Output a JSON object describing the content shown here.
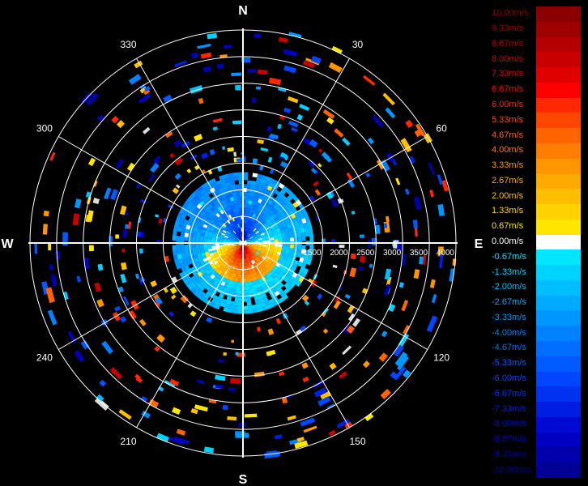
{
  "chart_data": {
    "type": "heatmap",
    "subtype": "polar-doppler-velocity-ppi",
    "compass": {
      "north": "N",
      "east": "E",
      "south": "S",
      "west": "W"
    },
    "azimuth_labels": [
      "30",
      "60",
      "120",
      "150",
      "210",
      "240",
      "300",
      "330"
    ],
    "azimuths_deg": [
      30,
      60,
      120,
      150,
      210,
      240,
      300,
      330
    ],
    "range_ticks": [
      "1500",
      "2000",
      "2500",
      "3000",
      "3500",
      "4000"
    ],
    "range_values": [
      1500,
      2000,
      2500,
      3000,
      3500,
      4000
    ],
    "range_max": 4000,
    "range_rings": [
      500,
      1000,
      1500,
      2000,
      2500,
      3000,
      3500,
      4000
    ],
    "grid": true,
    "legend_placement": "right",
    "legend": [
      {
        "label": "10.00m/s",
        "value": 10.0,
        "color": "#8b0000"
      },
      {
        "label": "9.33m/s",
        "value": 9.33,
        "color": "#9e0000"
      },
      {
        "label": "8.67m/s",
        "value": 8.67,
        "color": "#b40000"
      },
      {
        "label": "8.00m/s",
        "value": 8.0,
        "color": "#c80000"
      },
      {
        "label": "7.33m/s",
        "value": 7.33,
        "color": "#e00000"
      },
      {
        "label": "6.67m/s",
        "value": 6.67,
        "color": "#ff0000"
      },
      {
        "label": "6.00m/s",
        "value": 6.0,
        "color": "#ff2800"
      },
      {
        "label": "5.33m/s",
        "value": 5.33,
        "color": "#ff4600"
      },
      {
        "label": "4.67m/s",
        "value": 4.67,
        "color": "#ff6400"
      },
      {
        "label": "4.00m/s",
        "value": 4.0,
        "color": "#ff7d00"
      },
      {
        "label": "3.33m/s",
        "value": 3.33,
        "color": "#ff9600"
      },
      {
        "label": "2.67m/s",
        "value": 2.67,
        "color": "#ffaa00"
      },
      {
        "label": "2.00m/s",
        "value": 2.0,
        "color": "#ffbe00"
      },
      {
        "label": "1.33m/s",
        "value": 1.33,
        "color": "#ffd200"
      },
      {
        "label": "0.67m/s",
        "value": 0.67,
        "color": "#ffe600"
      },
      {
        "label": "0.00m/s",
        "value": 0.0,
        "color": "#ffffff"
      },
      {
        "label": "-0.67m/s",
        "value": -0.67,
        "color": "#00e6ff"
      },
      {
        "label": "-1.33m/s",
        "value": -1.33,
        "color": "#00d2ff"
      },
      {
        "label": "-2.00m/s",
        "value": -2.0,
        "color": "#00beff"
      },
      {
        "label": "-2.67m/s",
        "value": -2.67,
        "color": "#00aaff"
      },
      {
        "label": "-3.33m/s",
        "value": -3.33,
        "color": "#0096ff"
      },
      {
        "label": "-4.00m/s",
        "value": -4.0,
        "color": "#0082ff"
      },
      {
        "label": "-4.67m/s",
        "value": -4.67,
        "color": "#006eff"
      },
      {
        "label": "-5.33m/s",
        "value": -5.33,
        "color": "#005aff"
      },
      {
        "label": "-6.00m/s",
        "value": -6.0,
        "color": "#0046ff"
      },
      {
        "label": "-6.67m/s",
        "value": -6.67,
        "color": "#0032f0"
      },
      {
        "label": "-7.33m/s",
        "value": -7.33,
        "color": "#001ee1"
      },
      {
        "label": "-8.00m/s",
        "value": -8.0,
        "color": "#000ad2"
      },
      {
        "label": "-8.67m/s",
        "value": -8.67,
        "color": "#0000c3"
      },
      {
        "label": "-9.33m/s",
        "value": -9.33,
        "color": "#0000aa"
      },
      {
        "label": "-10.00m/s",
        "value": -10.0,
        "color": "#000096"
      }
    ]
  }
}
